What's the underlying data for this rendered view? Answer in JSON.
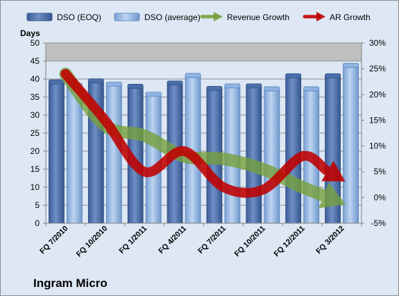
{
  "chart_data": {
    "type": "bar",
    "company": "Ingram Micro",
    "ylabel": "Days",
    "categories": [
      "FQ 7/2010",
      "FQ 10/2010",
      "FQ 1/2011",
      "FQ 4/2011",
      "FQ 7/2011",
      "FQ 10/2011",
      "FQ 12/2011",
      "FQ 3/2012"
    ],
    "series": [
      {
        "name": "DSO (EOQ)",
        "values": [
          39.2,
          39.5,
          38,
          38.9,
          37.4,
          38.1,
          40.9,
          40.9
        ],
        "color": "#4a6eaa"
      },
      {
        "name": "DSO (average)",
        "values": [
          38.2,
          38.6,
          35.8,
          41,
          38.1,
          37.3,
          37.3,
          43.8
        ],
        "color": "#8fb4e3"
      }
    ],
    "trend_arrows": [
      {
        "name": "Revenue Growth",
        "values": [
          24,
          14,
          12,
          8,
          7.5,
          5.5,
          2,
          -1
        ],
        "color": "#77a03c"
      },
      {
        "name": "AR Growth",
        "values": [
          24,
          15,
          5,
          9,
          2,
          1.5,
          8,
          3.5
        ],
        "color": "#c00000"
      }
    ],
    "y_left": {
      "min": 0,
      "max": 50,
      "step": 5,
      "ticks": [
        "0",
        "5",
        "10",
        "15",
        "20",
        "25",
        "30",
        "35",
        "40",
        "45",
        "50"
      ]
    },
    "y_right": {
      "min": -5,
      "max": 30,
      "step": 5,
      "ticks": [
        "-5%",
        "0%",
        "5%",
        "10%",
        "15%",
        "20%",
        "25%",
        "30%"
      ]
    },
    "highlight_band": {
      "from": 45,
      "to": 50,
      "color": "#c0c0c0"
    },
    "legend_position": "top",
    "grid": true
  }
}
